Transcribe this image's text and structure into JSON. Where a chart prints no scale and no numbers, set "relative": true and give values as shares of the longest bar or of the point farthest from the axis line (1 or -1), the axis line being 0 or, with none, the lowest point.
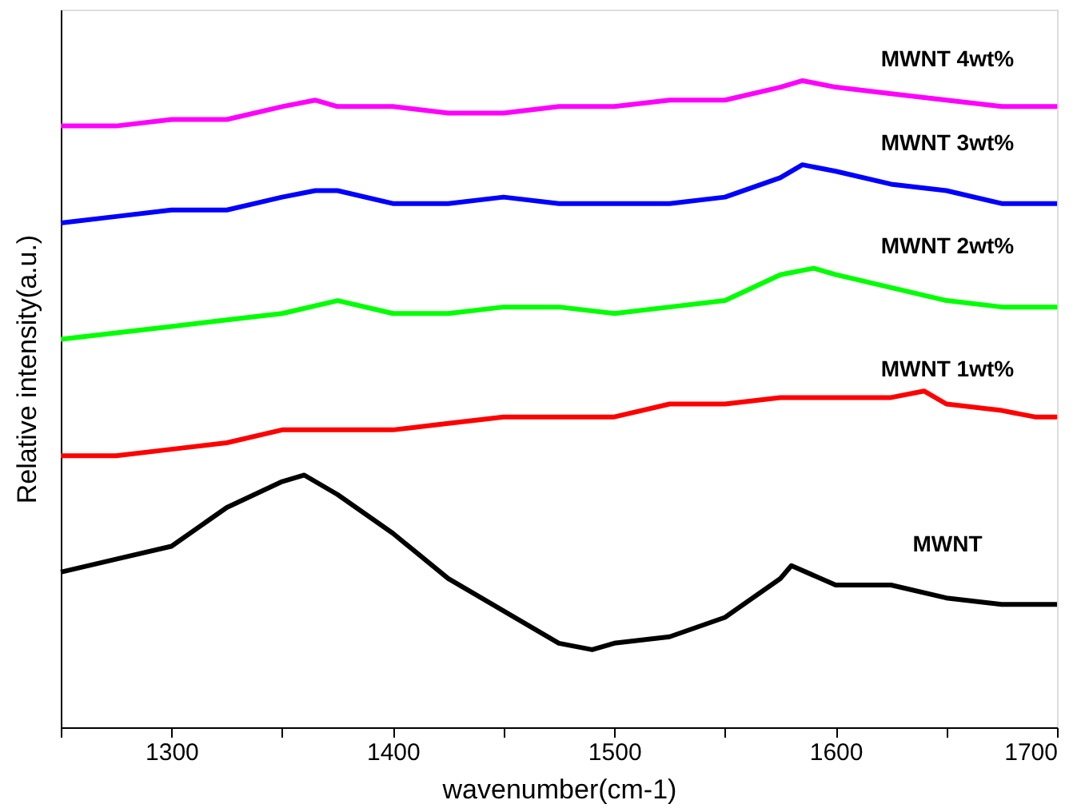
{
  "chart_data": {
    "type": "line",
    "relative": true,
    "xlabel": "wavenumber(cm-1)",
    "ylabel": "Relative intensity(a.u.)",
    "xlim": [
      1250,
      1700
    ],
    "xticks": [
      {
        "value": 1250,
        "label": null
      },
      1300,
      {
        "value": 1350,
        "label": null
      },
      1400,
      {
        "value": 1450,
        "label": null
      },
      1500,
      {
        "value": 1550,
        "label": null
      },
      1600,
      {
        "value": 1650,
        "label": null
      },
      1700
    ],
    "grid": false,
    "legend": false,
    "marker": "none",
    "line_style": "solid",
    "series": [
      {
        "name": "MWNT",
        "color": "#000000",
        "x": [
          1250,
          1275,
          1300,
          1325,
          1350,
          1360,
          1375,
          1400,
          1425,
          1450,
          1475,
          1490,
          1500,
          1525,
          1550,
          1575,
          1580,
          1600,
          1620,
          1625,
          1650,
          1675,
          1700
        ],
        "values": [
          0.24,
          0.26,
          0.28,
          0.34,
          0.38,
          0.39,
          0.36,
          0.3,
          0.23,
          0.18,
          0.13,
          0.12,
          0.13,
          0.14,
          0.17,
          0.23,
          0.25,
          0.22,
          0.22,
          0.22,
          0.2,
          0.19,
          0.19
        ]
      },
      {
        "name": "MWNT 1wt%",
        "color": "#ff0000",
        "x": [
          1250,
          1275,
          1300,
          1325,
          1350,
          1375,
          1400,
          1425,
          1450,
          1475,
          1500,
          1525,
          1550,
          1575,
          1600,
          1625,
          1640,
          1650,
          1675,
          1690,
          1700
        ],
        "values": [
          0.42,
          0.42,
          0.43,
          0.44,
          0.46,
          0.46,
          0.46,
          0.47,
          0.48,
          0.48,
          0.48,
          0.5,
          0.5,
          0.51,
          0.51,
          0.51,
          0.52,
          0.5,
          0.49,
          0.48,
          0.48
        ]
      },
      {
        "name": "MWNT 2wt%",
        "color": "#00ff00",
        "x": [
          1250,
          1275,
          1300,
          1325,
          1350,
          1375,
          1400,
          1425,
          1450,
          1475,
          1500,
          1525,
          1550,
          1575,
          1590,
          1600,
          1625,
          1650,
          1675,
          1700
        ],
        "values": [
          0.6,
          0.61,
          0.62,
          0.63,
          0.64,
          0.66,
          0.64,
          0.64,
          0.65,
          0.65,
          0.64,
          0.65,
          0.66,
          0.7,
          0.71,
          0.7,
          0.68,
          0.66,
          0.65,
          0.65
        ]
      },
      {
        "name": "MWNT 3wt%",
        "color": "#0000ff",
        "x": [
          1250,
          1275,
          1300,
          1325,
          1350,
          1365,
          1375,
          1400,
          1425,
          1450,
          1475,
          1500,
          1525,
          1550,
          1575,
          1585,
          1600,
          1625,
          1650,
          1675,
          1700
        ],
        "values": [
          0.78,
          0.79,
          0.8,
          0.8,
          0.82,
          0.83,
          0.83,
          0.81,
          0.81,
          0.82,
          0.81,
          0.81,
          0.81,
          0.82,
          0.85,
          0.87,
          0.86,
          0.84,
          0.83,
          0.81,
          0.81
        ]
      },
      {
        "name": "MWNT 4wt%",
        "color": "#ff00ff",
        "x": [
          1250,
          1275,
          1300,
          1325,
          1350,
          1365,
          1375,
          1400,
          1425,
          1450,
          1475,
          1500,
          1525,
          1550,
          1575,
          1585,
          1600,
          1625,
          1650,
          1675,
          1700
        ],
        "values": [
          0.93,
          0.93,
          0.94,
          0.94,
          0.96,
          0.97,
          0.96,
          0.96,
          0.95,
          0.95,
          0.96,
          0.96,
          0.97,
          0.97,
          0.99,
          1.0,
          0.99,
          0.98,
          0.97,
          0.96,
          0.96
        ]
      }
    ]
  }
}
